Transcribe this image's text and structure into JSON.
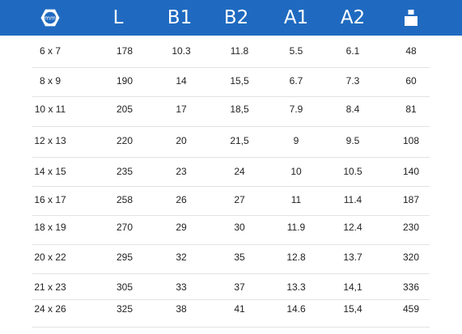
{
  "table": {
    "headers": {
      "size_icon_text": "mm",
      "L": "L",
      "B1": "B1",
      "B2": "B2",
      "A1": "A1",
      "A2": "A2"
    },
    "icons": {
      "size": "hex-nut-mm-icon",
      "weight": "weight-icon"
    },
    "rows": [
      [
        "6 x 7",
        "178",
        "10.3",
        "11.8",
        "5.5",
        "6.1",
        "48"
      ],
      [
        "8 x 9",
        "190",
        "14",
        "15,5",
        "6.7",
        "7.3",
        "60"
      ],
      [
        "10 x 11",
        "205",
        "17",
        "18,5",
        "7.9",
        "8.4",
        "81"
      ],
      [
        "12 x 13",
        "220",
        "20",
        "21,5",
        "9",
        "9.5",
        "108"
      ],
      [
        "14 x 15",
        "235",
        "23",
        "24",
        "10",
        "10.5",
        "140"
      ],
      [
        "16 x 17",
        "258",
        "26",
        "27",
        "11",
        "11.4",
        "187"
      ],
      [
        "18 x 19",
        "270",
        "29",
        "30",
        "11.9",
        "12.4",
        "230"
      ],
      [
        "20 x 22",
        "295",
        "32",
        "35",
        "12.8",
        "13.7",
        "320"
      ],
      [
        "21 x 23",
        "305",
        "33",
        "37",
        "13.3",
        "14,1",
        "336"
      ],
      [
        "24 x 26",
        "325",
        "38",
        "41",
        "14.6",
        "15,4",
        "459"
      ]
    ]
  },
  "colors": {
    "header_bg": "#1f6ac0",
    "header_text": "#ffffff",
    "text": "#222222",
    "separator": "#e2e2e2"
  }
}
